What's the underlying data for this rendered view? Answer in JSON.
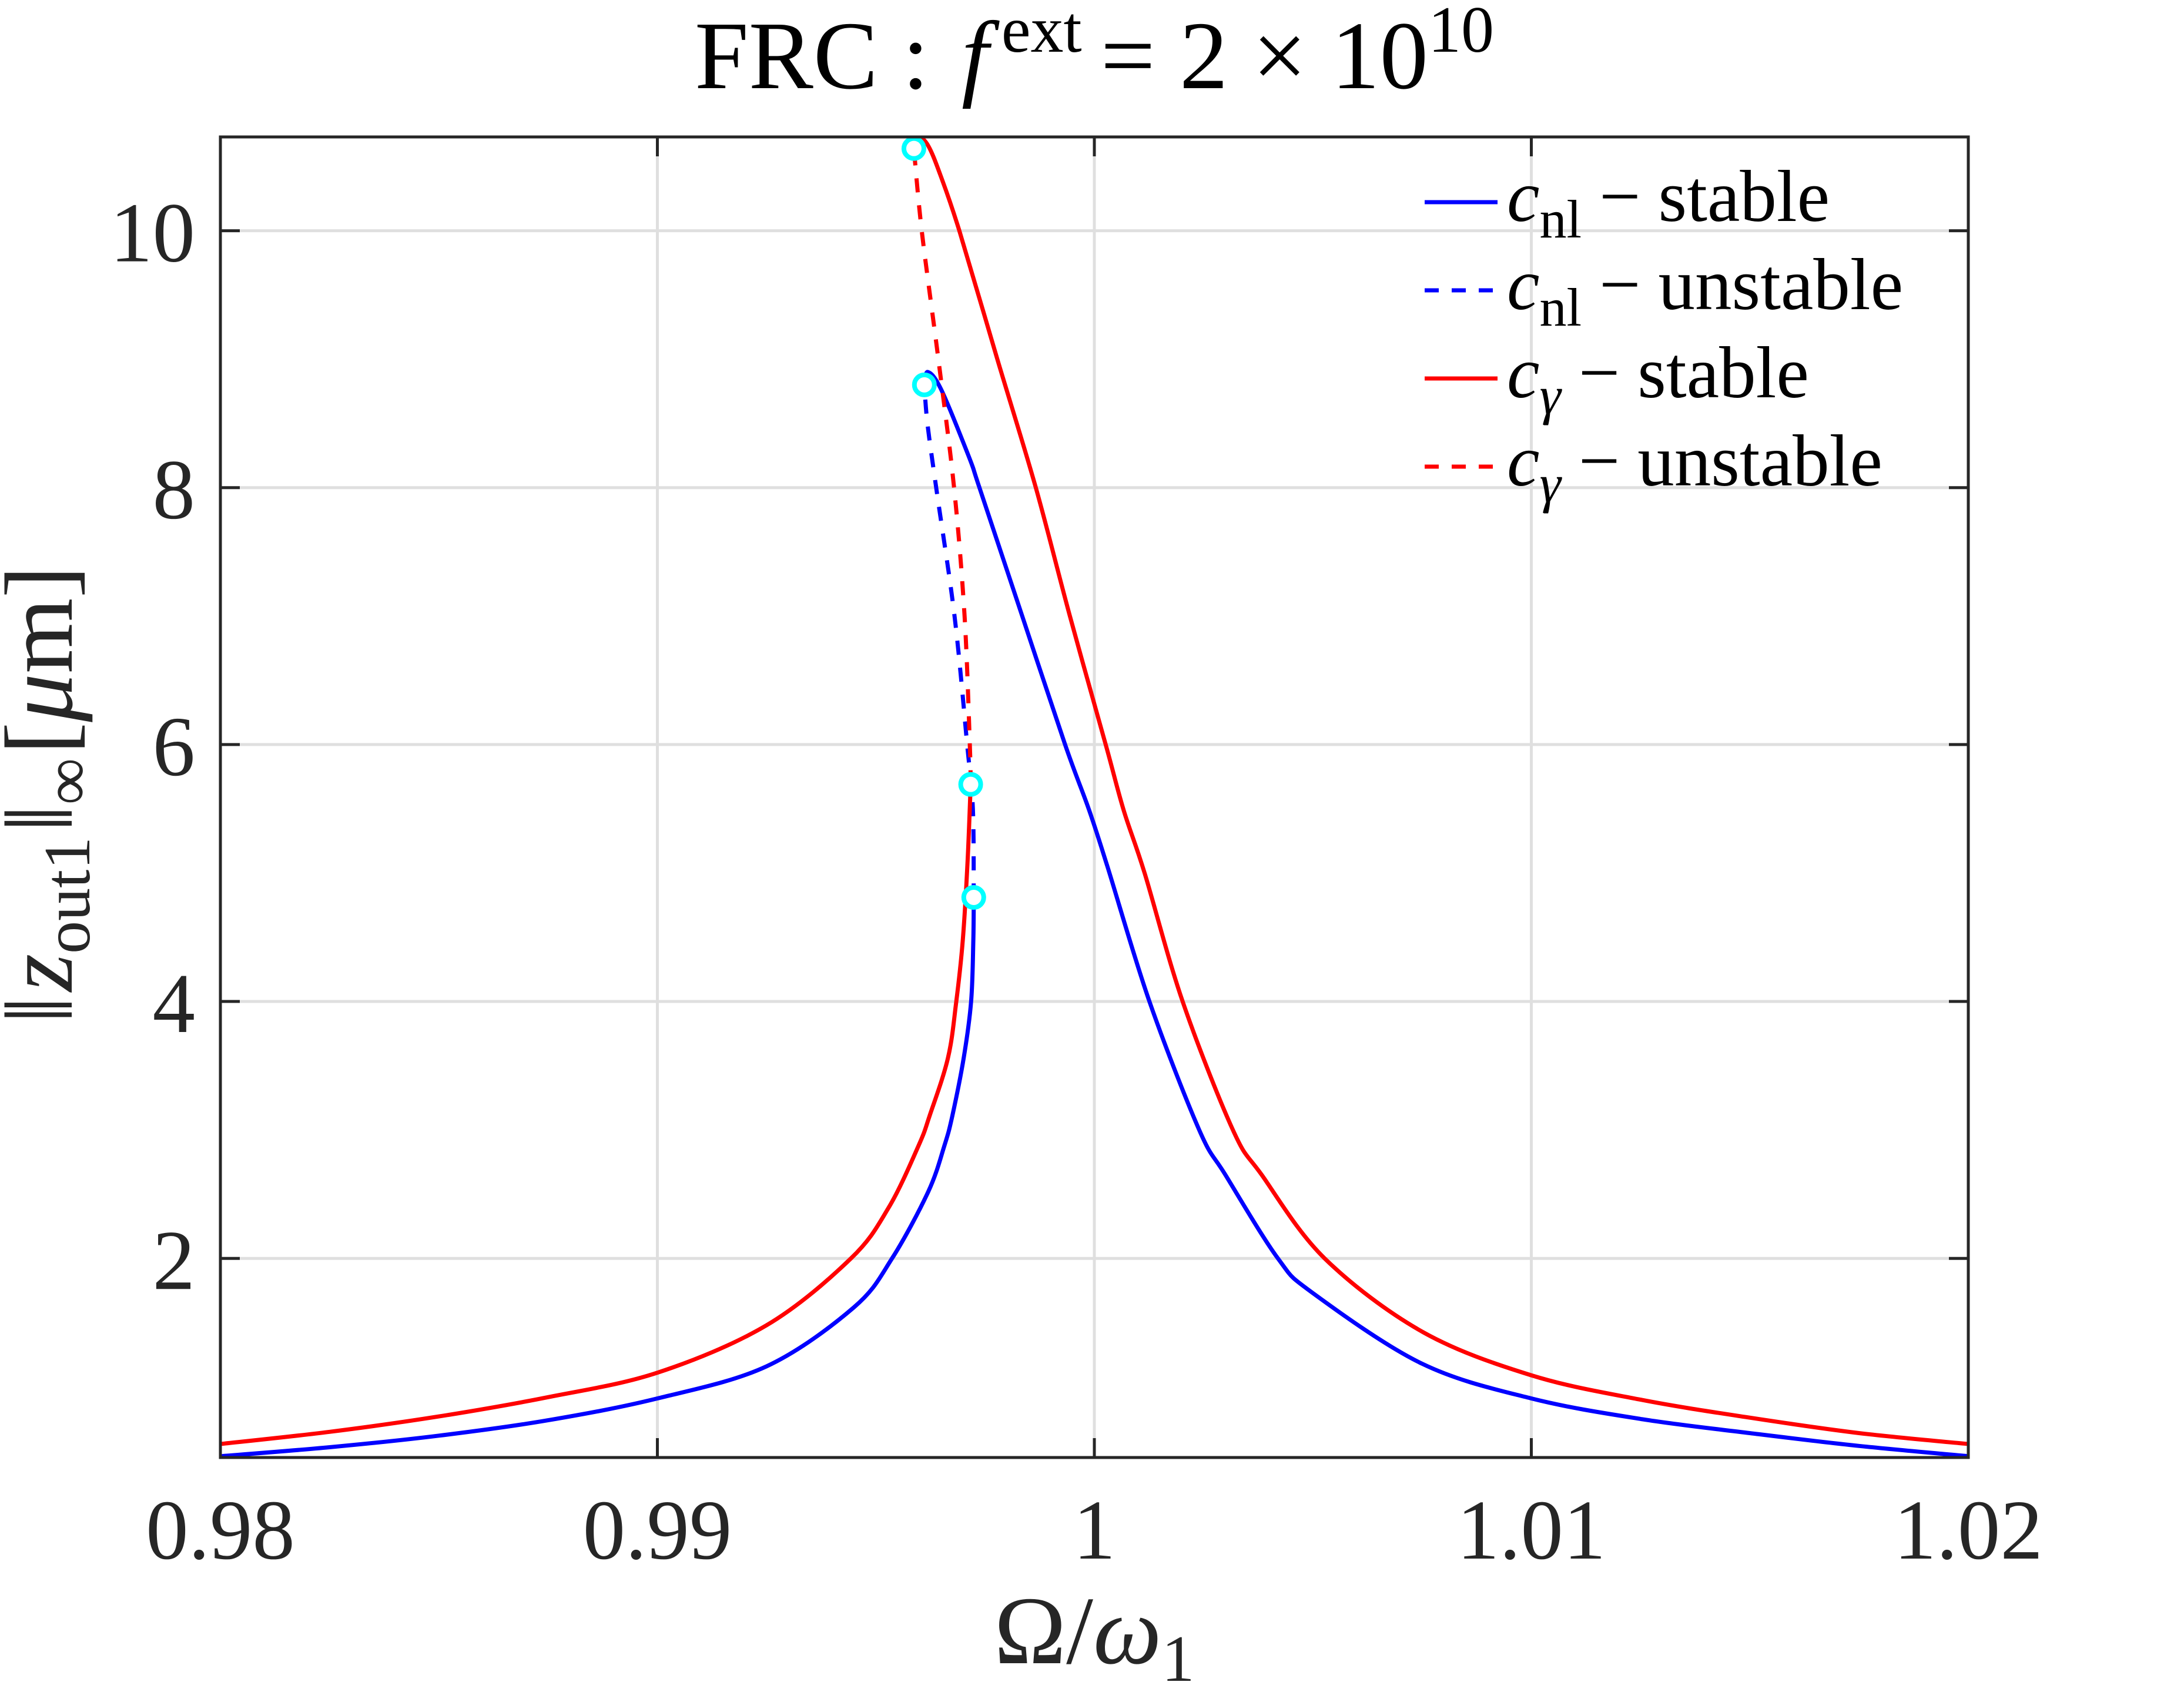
{
  "chart_data": {
    "type": "line",
    "title": {
      "prefix": "FRC :",
      "var": "f",
      "sup": "ext",
      "rhs": "= 2 × 10",
      "exp": "10"
    },
    "xlabel": {
      "num": "Ω",
      "slash": "/",
      "den": "ω",
      "sub": "1"
    },
    "ylabel": {
      "norm_open": "‖",
      "var": "z",
      "sub": "out1",
      "norm_close": "‖",
      "norm_sub": "∞",
      "unit_open": "[",
      "unit_var": "μ",
      "unit_rest": "m]"
    },
    "xlim": [
      0.98,
      1.02
    ],
    "ylim": [
      0.45,
      10.73
    ],
    "grid": true,
    "legend_position": "top-right",
    "xticks": [
      0.98,
      0.99,
      1.0,
      1.01,
      1.02
    ],
    "xtick_labels": [
      "0.98",
      "0.99",
      "1",
      "1.01",
      "1.02"
    ],
    "yticks": [
      2,
      4,
      6,
      8,
      10
    ],
    "ytick_labels": [
      "2",
      "4",
      "6",
      "8",
      "10"
    ],
    "colors": {
      "cnl": "#0000ff",
      "cgamma": "#ff0000",
      "bifurcation_marker": "#00ffff",
      "grid": "#dfdfdf",
      "axes": "#262626"
    },
    "series": [
      {
        "label": {
          "var": "c",
          "sub": "nl",
          "sep": "−",
          "state": "stable"
        },
        "color": "#0000ff",
        "dashed": false,
        "segments": [
          [
            [
              0.98,
              0.46
            ],
            [
              0.9825,
              0.53
            ],
            [
              0.985,
              0.62
            ],
            [
              0.9875,
              0.74
            ],
            [
              0.99,
              0.91
            ],
            [
              0.9925,
              1.16
            ],
            [
              0.9945,
              1.62
            ],
            [
              0.99537,
              2.0
            ],
            [
              0.9962,
              2.52
            ],
            [
              0.99657,
              2.88
            ],
            [
              0.99675,
              3.11
            ],
            [
              0.99701,
              3.56
            ],
            [
              0.99718,
              4.0
            ],
            [
              0.99723,
              4.48
            ],
            [
              0.99724,
              4.81
            ]
          ],
          [
            [
              0.99611,
              8.8
            ],
            [
              0.99619,
              8.9
            ],
            [
              0.9965,
              8.76
            ],
            [
              0.99714,
              8.23
            ],
            [
              0.99737,
              8.0
            ],
            [
              0.99835,
              7.0
            ],
            [
              0.99933,
              6.0
            ],
            [
              0.99988,
              5.49
            ],
            [
              1.0003,
              5.05
            ],
            [
              1.00126,
              4.0
            ],
            [
              1.0024,
              3.0
            ],
            [
              1.003,
              2.65
            ],
            [
              1.0042,
              2.0
            ],
            [
              1.005,
              1.73
            ],
            [
              1.0075,
              1.18
            ],
            [
              1.01,
              0.91
            ],
            [
              1.0125,
              0.75
            ],
            [
              1.015,
              0.64
            ],
            [
              1.0175,
              0.54
            ],
            [
              1.02,
              0.46
            ]
          ]
        ]
      },
      {
        "label": {
          "var": "c",
          "sub": "nl",
          "sep": "−",
          "state": "unstable"
        },
        "color": "#0000ff",
        "dashed": true,
        "segments": [
          [
            [
              0.99724,
              4.81
            ],
            [
              0.99722,
              5.5
            ],
            [
              0.99709,
              6.0
            ],
            [
              0.9968,
              7.0
            ],
            [
              0.99638,
              8.0
            ],
            [
              0.99618,
              8.5
            ],
            [
              0.99611,
              8.8
            ]
          ]
        ]
      },
      {
        "label": {
          "var": "c",
          "sub": "γ",
          "sep": "−",
          "state": "stable"
        },
        "color": "#ff0000",
        "dashed": false,
        "segments": [
          [
            [
              0.98,
              0.555
            ],
            [
              0.9825,
              0.65
            ],
            [
              0.985,
              0.77
            ],
            [
              0.9875,
              0.92
            ],
            [
              0.99,
              1.11
            ],
            [
              0.9925,
              1.48
            ],
            [
              0.99443,
              2.0
            ],
            [
              0.9953,
              2.4
            ],
            [
              0.99598,
              2.88
            ],
            [
              0.99623,
              3.11
            ],
            [
              0.99665,
              3.56
            ],
            [
              0.99684,
              4.0
            ],
            [
              0.99699,
              4.48
            ],
            [
              0.9971,
              5.1
            ],
            [
              0.99717,
              5.69
            ]
          ],
          [
            [
              0.9959,
              10.66
            ],
            [
              0.99598,
              10.73
            ],
            [
              0.9962,
              10.66
            ],
            [
              0.99648,
              10.43
            ],
            [
              0.99691,
              10.0
            ],
            [
              0.99778,
              9.0
            ],
            [
              0.99866,
              8.0
            ],
            [
              0.99944,
              7.0
            ],
            [
              1.00026,
              6.0
            ],
            [
              1.00067,
              5.49
            ],
            [
              1.00115,
              5.0
            ],
            [
              1.00202,
              4.0
            ],
            [
              1.00317,
              3.0
            ],
            [
              1.00383,
              2.65
            ],
            [
              1.00527,
              2.0
            ],
            [
              1.0075,
              1.43
            ],
            [
              1.01,
              1.09
            ],
            [
              1.0125,
              0.9
            ],
            [
              1.015,
              0.76
            ],
            [
              1.0175,
              0.64
            ],
            [
              1.02,
              0.555
            ]
          ]
        ]
      },
      {
        "label": {
          "var": "c",
          "sub": "γ",
          "sep": "−",
          "state": "unstable"
        },
        "color": "#ff0000",
        "dashed": true,
        "segments": [
          [
            [
              0.99717,
              5.69
            ],
            [
              0.99715,
              6.0
            ],
            [
              0.99703,
              7.0
            ],
            [
              0.99679,
              8.0
            ],
            [
              0.99643,
              9.0
            ],
            [
              0.99605,
              10.0
            ],
            [
              0.99587,
              10.64
            ]
          ]
        ]
      }
    ],
    "bifurcation_points": [
      [
        0.99587,
        10.64
      ],
      [
        0.99611,
        8.8
      ],
      [
        0.99717,
        5.69
      ],
      [
        0.99724,
        4.81
      ]
    ]
  }
}
